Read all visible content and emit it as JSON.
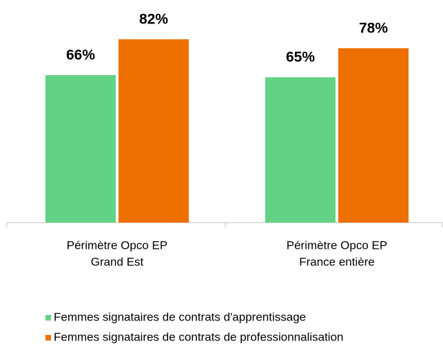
{
  "chart_data": {
    "type": "bar",
    "categories": [
      [
        "Périmètre Opco EP",
        "Grand Est"
      ],
      [
        "Périmètre Opco EP",
        "France entière"
      ]
    ],
    "series": [
      {
        "name": "Femmes signataires de contrats d'apprentissage",
        "color": "#62d284",
        "values": [
          66,
          65
        ],
        "value_labels": [
          "66%",
          "65%"
        ]
      },
      {
        "name": "Femmes signataires de contrats de professionnalisation",
        "color": "#ed7000",
        "values": [
          82,
          78
        ],
        "value_labels": [
          "82%",
          "78%"
        ]
      }
    ],
    "legend": "bottom"
  }
}
